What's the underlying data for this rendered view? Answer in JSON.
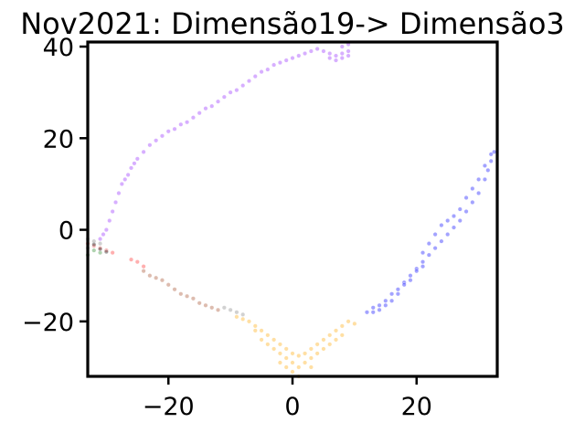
{
  "chart_data": {
    "type": "scatter",
    "title": "Nov2021: Dimensão19-> Dimensão3",
    "xlabel": "",
    "ylabel": "",
    "xlim": [
      -33,
      33
    ],
    "ylim": [
      -32,
      41
    ],
    "xticks": [
      -20,
      0,
      20
    ],
    "xtick_labels": [
      "−20",
      "0",
      "20"
    ],
    "yticks": [
      -20,
      0,
      20,
      40
    ],
    "ytick_labels": [
      "−20",
      "0",
      "20",
      "40"
    ],
    "grid": false,
    "legend": "none",
    "series": [
      {
        "color": "#a64dff",
        "points": [
          [
            -31,
            -2
          ],
          [
            -30.5,
            -1
          ],
          [
            -30,
            0
          ],
          [
            -29.5,
            2
          ],
          [
            -29,
            4
          ],
          [
            -28.5,
            6
          ],
          [
            -28,
            8
          ],
          [
            -27.5,
            10
          ],
          [
            -27,
            11
          ],
          [
            -26.5,
            12
          ],
          [
            -26,
            13.5
          ],
          [
            -25.5,
            14.5
          ],
          [
            -25,
            15.5
          ],
          [
            -24,
            17
          ],
          [
            -23,
            18.5
          ],
          [
            -22,
            19.5
          ],
          [
            -21,
            20.5
          ],
          [
            -20,
            21.5
          ],
          [
            -19,
            22
          ],
          [
            -18,
            23
          ],
          [
            -17,
            23.5
          ],
          [
            -16,
            24.5
          ],
          [
            -15,
            25.5
          ],
          [
            -14,
            26.5
          ],
          [
            -13,
            27
          ],
          [
            -12,
            28
          ],
          [
            -11,
            29
          ],
          [
            -10,
            30
          ],
          [
            -9,
            30.5
          ],
          [
            -8,
            31.5
          ],
          [
            -7,
            32.5
          ],
          [
            -6,
            33.5
          ],
          [
            -5,
            34.5
          ],
          [
            -4,
            35
          ],
          [
            -3,
            36
          ],
          [
            -2,
            36.5
          ],
          [
            -1,
            37
          ],
          [
            0,
            37.5
          ],
          [
            1,
            38
          ],
          [
            2,
            38.5
          ],
          [
            3,
            39
          ],
          [
            4,
            39.5
          ],
          [
            5,
            39
          ],
          [
            6,
            38.5
          ],
          [
            7,
            38
          ],
          [
            8,
            38.5
          ],
          [
            9,
            39
          ],
          [
            7,
            37
          ],
          [
            8,
            37.5
          ],
          [
            9,
            38
          ],
          [
            6,
            37.5
          ],
          [
            8,
            40
          ],
          [
            9,
            40.5
          ]
        ]
      },
      {
        "color": "#3333ff",
        "points": [
          [
            12,
            -18
          ],
          [
            13,
            -17
          ],
          [
            14,
            -16.5
          ],
          [
            15,
            -15.5
          ],
          [
            16,
            -14
          ],
          [
            17,
            -13
          ],
          [
            18,
            -11.5
          ],
          [
            19,
            -10
          ],
          [
            20,
            -8.5
          ],
          [
            21,
            -7
          ],
          [
            22,
            -5.5
          ],
          [
            23,
            -4
          ],
          [
            24,
            -2.5
          ],
          [
            25,
            -1
          ],
          [
            26,
            0.5
          ],
          [
            27,
            2
          ],
          [
            28,
            4
          ],
          [
            29,
            6
          ],
          [
            30,
            8
          ],
          [
            31,
            11
          ],
          [
            31.5,
            13
          ],
          [
            32,
            15
          ],
          [
            32.5,
            17
          ],
          [
            25,
            2
          ],
          [
            26,
            3
          ],
          [
            27,
            4.5
          ],
          [
            28,
            7
          ],
          [
            29,
            9
          ],
          [
            30,
            11
          ],
          [
            31,
            14
          ],
          [
            32,
            16.5
          ],
          [
            21,
            -5
          ],
          [
            22,
            -3
          ],
          [
            23,
            -1
          ],
          [
            24,
            1
          ],
          [
            20,
            -9
          ],
          [
            21,
            -8
          ],
          [
            19,
            -11
          ],
          [
            18,
            -12
          ],
          [
            17,
            -14
          ],
          [
            16,
            -15.5
          ],
          [
            15,
            -16.5
          ],
          [
            14,
            -17.5
          ],
          [
            13,
            -18
          ]
        ]
      },
      {
        "color": "#ffb733",
        "points": [
          [
            -9,
            -19
          ],
          [
            -8,
            -19.5
          ],
          [
            -7,
            -20
          ],
          [
            -6,
            -21
          ],
          [
            -5,
            -22
          ],
          [
            -4,
            -23
          ],
          [
            -3,
            -24
          ],
          [
            -2,
            -25
          ],
          [
            -1,
            -26
          ],
          [
            0,
            -27
          ],
          [
            1,
            -27.5
          ],
          [
            2,
            -27
          ],
          [
            3,
            -26
          ],
          [
            4,
            -25
          ],
          [
            5,
            -24
          ],
          [
            6,
            -23
          ],
          [
            7,
            -22
          ],
          [
            8,
            -21
          ],
          [
            9,
            -20
          ],
          [
            10,
            -20.5
          ],
          [
            -1,
            -28
          ],
          [
            0,
            -29
          ],
          [
            0,
            -31
          ],
          [
            1,
            -30
          ],
          [
            -1,
            -30
          ],
          [
            2,
            -29
          ],
          [
            3,
            -28
          ],
          [
            -3,
            -26
          ],
          [
            -2,
            -27
          ],
          [
            4,
            -27
          ],
          [
            5,
            -26
          ],
          [
            6,
            -25
          ],
          [
            7,
            -24
          ],
          [
            8,
            -23
          ],
          [
            -5,
            -24
          ],
          [
            -4,
            -25
          ],
          [
            -6,
            -22
          ],
          [
            1,
            -32
          ],
          [
            -2,
            -29
          ],
          [
            3,
            -30
          ]
        ]
      },
      {
        "color": "#ff4d4d",
        "points": [
          [
            -33,
            -3
          ],
          [
            -32,
            -3.5
          ],
          [
            -31,
            -4
          ],
          [
            -30,
            -4.5
          ],
          [
            -29,
            -5
          ],
          [
            -26,
            -6.5
          ],
          [
            -25,
            -7
          ],
          [
            -24,
            -8
          ]
        ]
      },
      {
        "color": "#b36b4d",
        "points": [
          [
            -24,
            -9
          ],
          [
            -23,
            -10
          ],
          [
            -22,
            -10.5
          ],
          [
            -21,
            -11
          ],
          [
            -20,
            -12
          ],
          [
            -19,
            -13
          ],
          [
            -18,
            -14
          ],
          [
            -17,
            -14.5
          ],
          [
            -16,
            -15
          ],
          [
            -15,
            -16
          ],
          [
            -14,
            -16.5
          ],
          [
            -13,
            -17
          ],
          [
            -12,
            -17.5
          ]
        ]
      },
      {
        "color": "#999999",
        "points": [
          [
            -11,
            -17
          ],
          [
            -10,
            -17.5
          ],
          [
            -9,
            -18
          ],
          [
            -8,
            -18.5
          ],
          [
            -33,
            -2
          ],
          [
            -32,
            -2.5
          ],
          [
            -33,
            -4
          ],
          [
            -31,
            -3
          ]
        ]
      },
      {
        "color": "#4d9e4d",
        "points": [
          [
            -32,
            -4.5
          ],
          [
            -31,
            -5
          ],
          [
            -33,
            -5.5
          ]
        ]
      },
      {
        "color": "#333333",
        "points": [
          [
            -31,
            -4.2
          ],
          [
            -30,
            -4.8
          ],
          [
            -32,
            -3.2
          ]
        ]
      }
    ]
  }
}
